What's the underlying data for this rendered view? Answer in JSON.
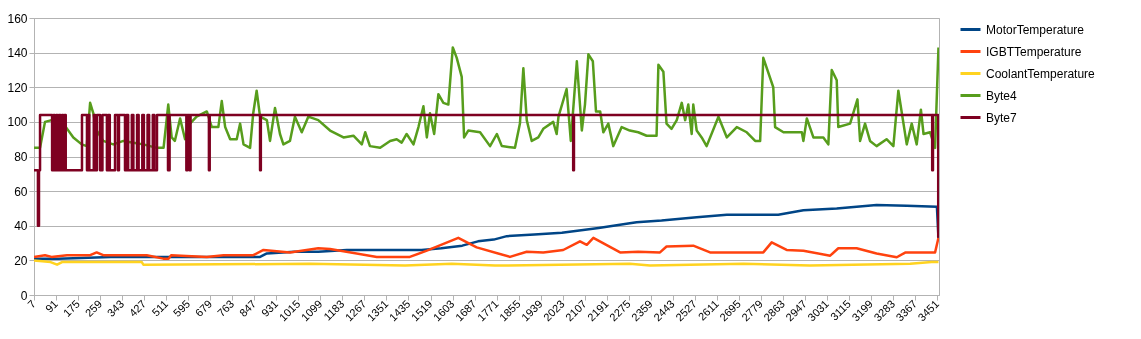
{
  "chart_data": {
    "type": "line",
    "xlim": [
      7,
      3458
    ],
    "xticks": [
      7,
      91,
      175,
      259,
      343,
      427,
      511,
      595,
      679,
      763,
      847,
      931,
      1015,
      1099,
      1183,
      1267,
      1351,
      1435,
      1519,
      1603,
      1687,
      1771,
      1855,
      1939,
      2023,
      2107,
      2191,
      2275,
      2359,
      2443,
      2527,
      2611,
      2695,
      2779,
      2863,
      2947,
      3031,
      3115,
      3199,
      3283,
      3367,
      3451
    ],
    "ylim": [
      0,
      160
    ],
    "yticks": [
      0,
      20,
      40,
      60,
      80,
      100,
      120,
      140,
      160
    ],
    "grid": "y",
    "legend": "right",
    "line_style": "solid",
    "marker": "none",
    "series": [
      {
        "name": "MotorTemperature",
        "color": "#004586",
        "x": [
          7,
          100,
          300,
          500,
          700,
          869,
          895,
          1000,
          1091,
          1200,
          1485,
          1560,
          1640,
          1700,
          1760,
          1810,
          1915,
          2020,
          2160,
          2279,
          2305,
          2400,
          2534,
          2649,
          2845,
          2941,
          3068,
          3220,
          3335,
          3450,
          3456
        ],
        "values": [
          21,
          21,
          22,
          22,
          22,
          22,
          24,
          25,
          25,
          26,
          26,
          27,
          28.5,
          31,
          32,
          34,
          35,
          36,
          38.7,
          41.4,
          42,
          43,
          44.9,
          46.4,
          46.4,
          49,
          50,
          52,
          51.6,
          51,
          33
        ]
      },
      {
        "name": "IGBTTemperature",
        "color": "#ff420e",
        "x": [
          7,
          49,
          74,
          133,
          221,
          246,
          271,
          437,
          500,
          520,
          530,
          666,
          730,
          843,
          882,
          983,
          1091,
          1136,
          1314,
          1440,
          1505,
          1625,
          1695,
          1822,
          1886,
          1949,
          2025,
          2089,
          2115,
          2140,
          2242,
          2311,
          2394,
          2419,
          2521,
          2585,
          2788,
          2820,
          2877,
          2941,
          3043,
          3074,
          3144,
          3220,
          3297,
          3329,
          3443,
          3456
        ],
        "values": [
          22,
          23,
          22,
          23,
          23,
          24.6,
          23,
          23,
          21,
          21,
          23,
          22,
          23,
          23,
          26,
          24.6,
          27,
          26.6,
          22,
          22,
          25.6,
          33,
          27.5,
          22,
          25,
          24.6,
          26,
          31,
          29,
          33,
          24.6,
          25,
          24.6,
          28,
          28.5,
          24.6,
          24.6,
          30.4,
          26,
          25.6,
          22.7,
          27,
          27,
          24,
          21.8,
          24.5,
          24.6,
          33
        ]
      },
      {
        "name": "CoolantTemperature",
        "color": "#ffd320",
        "x": [
          7,
          70,
          95,
          114,
          418,
          424,
          1060,
          1422,
          1600,
          1765,
          2279,
          2356,
          2712,
          2966,
          3348,
          3430,
          3456
        ],
        "values": [
          20,
          19,
          17.5,
          19,
          19,
          17.5,
          18,
          17,
          18,
          17,
          18,
          17,
          18,
          17,
          18,
          19,
          19
        ]
      },
      {
        "name": "Byte4",
        "color": "#579d1c",
        "x": [
          7,
          30,
          49,
          74,
          119,
          157,
          189,
          208,
          221,
          233,
          246,
          271,
          309,
          348,
          386,
          424,
          475,
          501,
          519,
          532,
          544,
          564,
          583,
          602,
          627,
          666,
          685,
          710,
          723,
          736,
          755,
          780,
          793,
          806,
          831,
          843,
          856,
          869,
          895,
          907,
          926,
          945,
          958,
          983,
          1002,
          1028,
          1053,
          1091,
          1136,
          1187,
          1225,
          1257,
          1270,
          1288,
          1327,
          1365,
          1390,
          1409,
          1428,
          1454,
          1473,
          1492,
          1505,
          1517,
          1533,
          1549,
          1568,
          1587,
          1604,
          1619,
          1638,
          1647,
          1663,
          1708,
          1746,
          1772,
          1791,
          1841,
          1860,
          1873,
          1886,
          1905,
          1930,
          1949,
          1987,
          2000,
          2007,
          2038,
          2054,
          2077,
          2096,
          2108,
          2121,
          2138,
          2150,
          2166,
          2178,
          2197,
          2216,
          2248,
          2279,
          2311,
          2343,
          2381,
          2388,
          2407,
          2419,
          2438,
          2458,
          2477,
          2490,
          2502,
          2515,
          2521,
          2534,
          2553,
          2572,
          2617,
          2649,
          2687,
          2725,
          2757,
          2776,
          2788,
          2826,
          2833,
          2865,
          2935,
          2941,
          2954,
          2979,
          3017,
          3036,
          3049,
          3068,
          3074,
          3119,
          3147,
          3157,
          3176,
          3195,
          3220,
          3258,
          3284,
          3303,
          3335,
          3354,
          3373,
          3389,
          3399,
          3424,
          3443,
          3456
        ],
        "values": [
          85,
          85,
          100,
          101,
          99,
          91,
          87,
          86,
          111,
          105,
          95,
          89,
          87,
          89,
          88,
          87,
          85,
          85,
          110,
          91,
          89,
          102,
          90,
          99,
          103,
          106,
          97,
          97,
          112,
          97,
          90,
          90,
          99,
          87,
          85,
          105,
          118,
          103,
          101,
          89,
          108,
          93,
          87,
          89,
          103,
          94,
          103,
          101,
          95,
          91,
          92,
          87,
          94,
          86,
          85,
          89,
          90,
          88,
          93,
          87,
          97,
          109,
          91,
          105,
          93,
          116,
          111,
          110,
          143,
          137,
          126,
          91,
          95,
          94,
          86,
          93,
          86,
          85,
          99,
          131,
          101,
          89,
          91,
          96,
          100,
          93,
          103,
          119,
          89,
          135,
          95,
          110,
          139,
          135,
          106,
          106,
          94,
          99,
          86,
          97,
          95,
          94,
          92,
          92,
          133,
          129,
          99,
          96,
          101,
          111,
          101,
          110,
          93,
          110,
          95,
          91,
          86,
          103,
          91,
          97,
          94,
          89,
          89,
          137,
          120,
          97,
          94,
          94,
          89,
          102,
          91,
          91,
          87,
          130,
          124,
          97,
          99,
          113,
          89,
          99,
          89,
          86,
          90,
          86,
          118,
          87,
          99,
          87,
          107,
          93,
          94,
          85,
          143
        ]
      },
      {
        "name": "Byte7",
        "color": "#7e0021",
        "x": [
          7,
          22,
          22,
          26,
          26,
          30,
          30,
          76,
          76,
          82,
          82,
          86,
          86,
          92,
          92,
          96,
          96,
          102,
          102,
          108,
          108,
          114,
          114,
          118,
          118,
          124,
          124,
          128,
          128,
          190,
          190,
          209,
          209,
          213,
          213,
          218,
          218,
          235,
          235,
          240,
          240,
          247,
          247,
          259,
          259,
          268,
          268,
          285,
          285,
          290,
          290,
          296,
          296,
          316,
          316,
          327,
          327,
          331,
          331,
          354,
          354,
          360,
          360,
          366,
          366,
          380,
          380,
          386,
          386,
          400,
          400,
          406,
          406,
          420,
          420,
          426,
          426,
          440,
          440,
          446,
          446,
          460,
          460,
          466,
          466,
          476,
          476,
          518,
          518,
          524,
          524,
          588,
          588,
          592,
          592,
          600,
          600,
          604,
          604,
          674,
          674,
          677,
          677,
          869,
          869,
          872,
          872,
          2063,
          2063,
          2066,
          2066,
          3432,
          3432,
          3435,
          3435,
          3455,
          3455
        ],
        "values": [
          72,
          72,
          40,
          40,
          72,
          72,
          104,
          104,
          72,
          72,
          104,
          104,
          72,
          72,
          104,
          104,
          72,
          72,
          104,
          104,
          72,
          72,
          104,
          104,
          72,
          72,
          104,
          104,
          72,
          72,
          104,
          104,
          72,
          72,
          104,
          104,
          72,
          72,
          104,
          104,
          72,
          72,
          104,
          104,
          72,
          72,
          104,
          104,
          72,
          72,
          104,
          104,
          72,
          72,
          104,
          104,
          72,
          72,
          104,
          104,
          72,
          72,
          104,
          104,
          72,
          72,
          104,
          104,
          72,
          72,
          104,
          104,
          72,
          72,
          104,
          104,
          72,
          72,
          104,
          104,
          72,
          72,
          104,
          104,
          72,
          72,
          104,
          104,
          72,
          72,
          104,
          104,
          72,
          72,
          104,
          104,
          72,
          72,
          104,
          104,
          72,
          72,
          104,
          104,
          72,
          72,
          104,
          104,
          72,
          72,
          104,
          104,
          72,
          72,
          104,
          104,
          33
        ]
      }
    ]
  }
}
